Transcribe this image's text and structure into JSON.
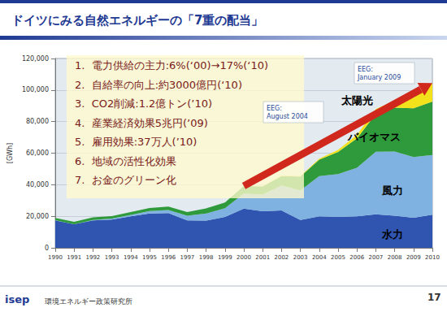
{
  "chart_data": {
    "type": "area",
    "stacked": true,
    "grid": true,
    "title": "ドイツにみる自然エネルギーの「7重の配当」",
    "y_label": "[GWh]",
    "categories": [
      "1990",
      "1991",
      "1992",
      "1993",
      "1994",
      "1995",
      "1996",
      "1997",
      "1998",
      "1999",
      "2000",
      "2001",
      "2002",
      "2003",
      "2004",
      "2005",
      "2006",
      "2007",
      "2008",
      "2009",
      "2010"
    ],
    "series": [
      {
        "name": "水力",
        "color": "#2f55b0",
        "values": [
          17400,
          14900,
          17400,
          17900,
          19900,
          21800,
          22000,
          17400,
          17200,
          19600,
          24900,
          23200,
          23700,
          17700,
          19900,
          19600,
          20000,
          21200,
          20400,
          19000,
          21000
        ]
      },
      {
        "name": "風力",
        "color": "#7fb2e0",
        "values": [
          100,
          100,
          300,
          600,
          900,
          1500,
          2000,
          3000,
          4500,
          5500,
          9500,
          10500,
          15800,
          18700,
          25500,
          27200,
          30700,
          39700,
          40600,
          38600,
          37800
        ]
      },
      {
        "name": "バイオマス",
        "color": "#2f9a3c",
        "values": [
          1400,
          1500,
          1600,
          1600,
          1900,
          2000,
          2100,
          2300,
          3300,
          3600,
          4700,
          5200,
          6000,
          8800,
          10500,
          14000,
          18700,
          24000,
          27900,
          30900,
          33900
        ]
      },
      {
        "name": "太陽光",
        "color": "#f2e21c",
        "values": [
          0,
          0,
          0,
          0,
          0,
          0,
          0,
          0,
          0,
          0,
          100,
          100,
          200,
          300,
          600,
          1300,
          2200,
          3100,
          4400,
          6600,
          11700
        ]
      }
    ],
    "ylim": [
      0,
      120000
    ],
    "yticks": [
      0,
      {
        "value": 20000,
        "label": "20,000"
      },
      {
        "value": 40000,
        "label": "40,000"
      },
      {
        "value": 60000,
        "label": "60,000"
      },
      {
        "value": 80000,
        "label": "80,000"
      },
      {
        "value": 100000,
        "label": "100,000"
      },
      {
        "value": 120000,
        "label": "120,000"
      }
    ],
    "annotations": [
      "EEG:\nAugust 2004",
      "EEG:\nJanuary 2009"
    ]
  },
  "slide": {
    "items": [
      "1.  電力供給の主力:6%(‘00)→17%(‘10)",
      "2.  自給率の向上:約3000億円(‘10)",
      "3.  CO2削減:1.2億トン(’10)",
      "4.  産業経済効果5兆円(’09)",
      "5.  雇用効果:37万人(’10)",
      "6.  地域の活性化効果",
      "7.  お金のグリーン化"
    ],
    "logo": "isep",
    "organization": "環境エネルギー政策研究所",
    "page": "17"
  }
}
